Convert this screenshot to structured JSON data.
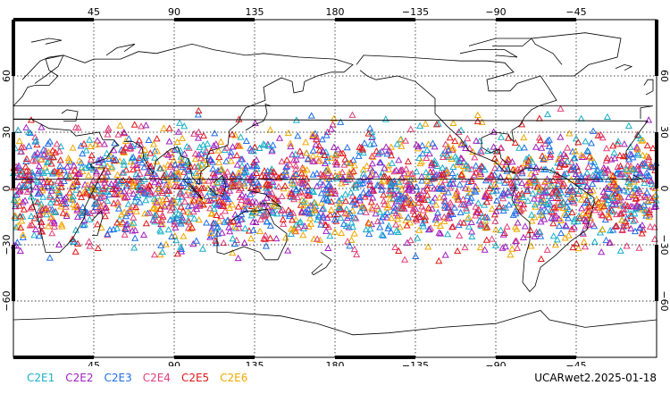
{
  "map": {
    "lon_ticks_top": [
      "45",
      "90",
      "135",
      "180",
      "−135",
      "−90",
      "−45"
    ],
    "lon_ticks_bottom": [
      "45",
      "90",
      "135",
      "180",
      "−135",
      "−90",
      "−45"
    ],
    "lat_ticks_left": [
      "60",
      "30",
      "0",
      "−30",
      "−60"
    ],
    "lat_ticks_right": [
      "60",
      "30",
      "0",
      "−30",
      "−60"
    ],
    "colors": {
      "C2E1": "#18b0c8",
      "C2E2": "#a020c0",
      "C2E3": "#1e6ee8",
      "C2E4": "#e0407a",
      "C2E5": "#e01818",
      "C2E6": "#f0a800"
    },
    "marker": "triangle",
    "coastline_color": "#000000",
    "grid_style": "dotted",
    "lon_range": [
      0,
      360
    ],
    "lat_range": [
      -90,
      90
    ]
  },
  "legend": [
    {
      "label": "C2E1",
      "color": "#18b0c8"
    },
    {
      "label": "C2E2",
      "color": "#a020c0"
    },
    {
      "label": "C2E3",
      "color": "#1e6ee8"
    },
    {
      "label": "C2E4",
      "color": "#e0407a"
    },
    {
      "label": "C2E5",
      "color": "#e01818"
    },
    {
      "label": "C2E6",
      "color": "#f0a800"
    }
  ],
  "stamp": "UCARwet2.2025-01-18"
}
